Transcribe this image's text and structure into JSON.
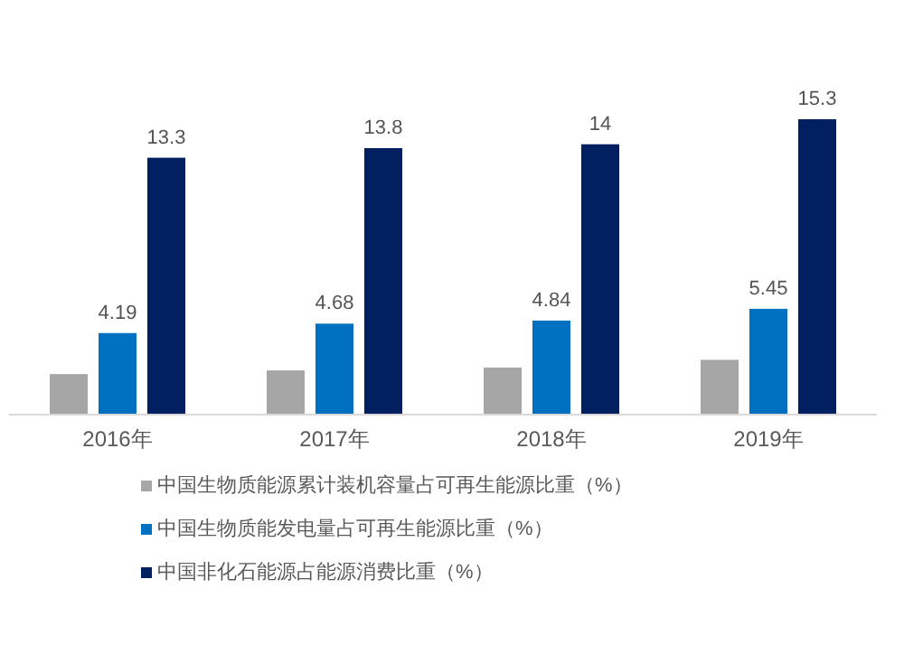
{
  "chart_data": {
    "type": "bar",
    "categories": [
      "2016年",
      "2017年",
      "2018年",
      "2019年"
    ],
    "series": [
      {
        "name": "中国生物质能源累计装机容量占可再生能源比重（%）",
        "color": "#a6a6a6",
        "values": [
          2.06,
          2.25,
          2.4,
          2.8
        ],
        "value_labels": [
          null,
          null,
          null,
          null
        ]
      },
      {
        "name": "中国生物质能发电量占可再生能源比重（%）",
        "color": "#0070c0",
        "values": [
          4.19,
          4.68,
          4.84,
          5.45
        ],
        "value_labels": [
          "4.19",
          "4.68",
          "4.84",
          "5.45"
        ]
      },
      {
        "name": "中国非化石能源占能源消费比重（%）",
        "color": "#002060",
        "values": [
          13.3,
          13.8,
          14,
          15.3
        ],
        "value_labels": [
          "13.3",
          "13.8",
          "14",
          "15.3"
        ]
      }
    ],
    "legend": "bottom"
  }
}
